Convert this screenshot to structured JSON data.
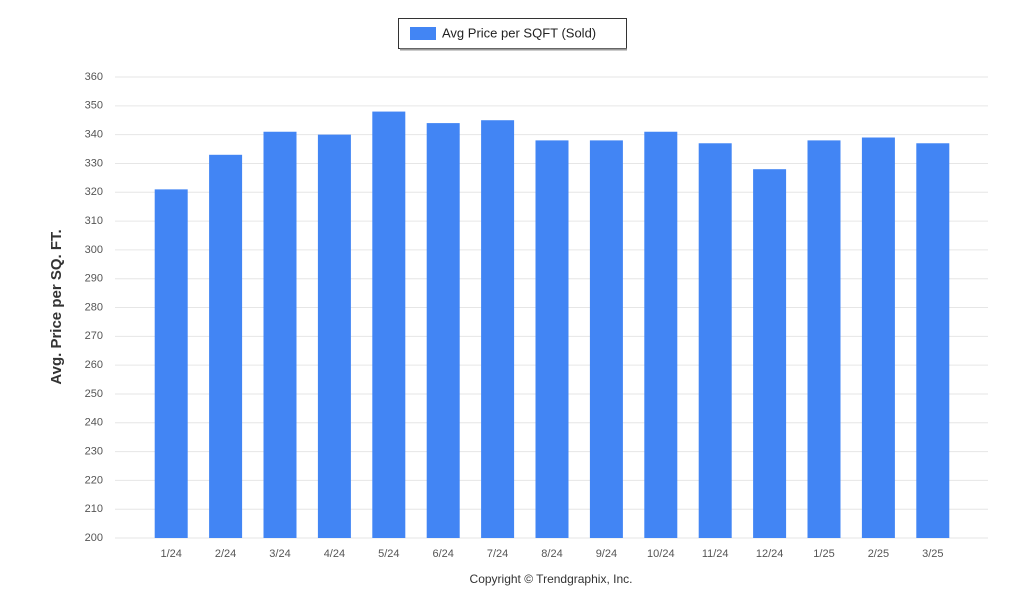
{
  "chart_data": {
    "type": "bar",
    "y_label": "Avg. Price per SQ. FT.",
    "credit": "Copyright © Trendgraphix, Inc.",
    "categories": [
      "1/24",
      "2/24",
      "3/24",
      "4/24",
      "5/24",
      "6/24",
      "7/24",
      "8/24",
      "9/24",
      "10/24",
      "11/24",
      "12/24",
      "1/25",
      "2/25",
      "3/25"
    ],
    "series": [
      {
        "name": "Avg Price per SQFT (Sold)",
        "color": "#4285f4",
        "values": [
          321,
          333,
          341,
          340,
          348,
          344,
          345,
          338,
          338,
          341,
          337,
          328,
          338,
          339,
          337
        ]
      }
    ],
    "ylim": [
      200,
      360
    ],
    "yticks": [
      200,
      210,
      220,
      230,
      240,
      250,
      260,
      270,
      280,
      290,
      300,
      310,
      320,
      330,
      340,
      350,
      360
    ],
    "grid": true
  }
}
